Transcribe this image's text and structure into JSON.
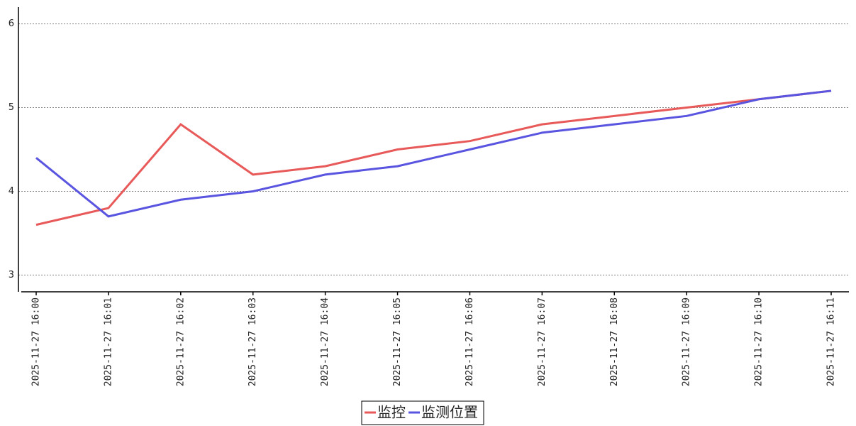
{
  "chart_data": {
    "type": "line",
    "categories": [
      "2025-11-27 16:00",
      "2025-11-27 16:01",
      "2025-11-27 16:02",
      "2025-11-27 16:03",
      "2025-11-27 16:04",
      "2025-11-27 16:05",
      "2025-11-27 16:06",
      "2025-11-27 16:07",
      "2025-11-27 16:08",
      "2025-11-27 16:09",
      "2025-11-27 16:10",
      "2025-11-27 16:11"
    ],
    "series": [
      {
        "name": "监控",
        "color": "#e85a5a",
        "values": [
          3.6,
          3.8,
          4.8,
          4.2,
          4.3,
          4.5,
          4.6,
          4.8,
          4.9,
          5.0,
          5.1,
          5.2
        ]
      },
      {
        "name": "监测位置",
        "color": "#5a55e0",
        "values": [
          4.4,
          3.7,
          3.9,
          4.0,
          4.2,
          4.3,
          4.5,
          4.7,
          4.8,
          4.9,
          5.1,
          5.2
        ]
      }
    ],
    "ylim": [
      2.8,
      6.2
    ],
    "yticks": [
      3,
      4,
      5,
      6
    ],
    "grid": true,
    "legend": "bottom"
  }
}
